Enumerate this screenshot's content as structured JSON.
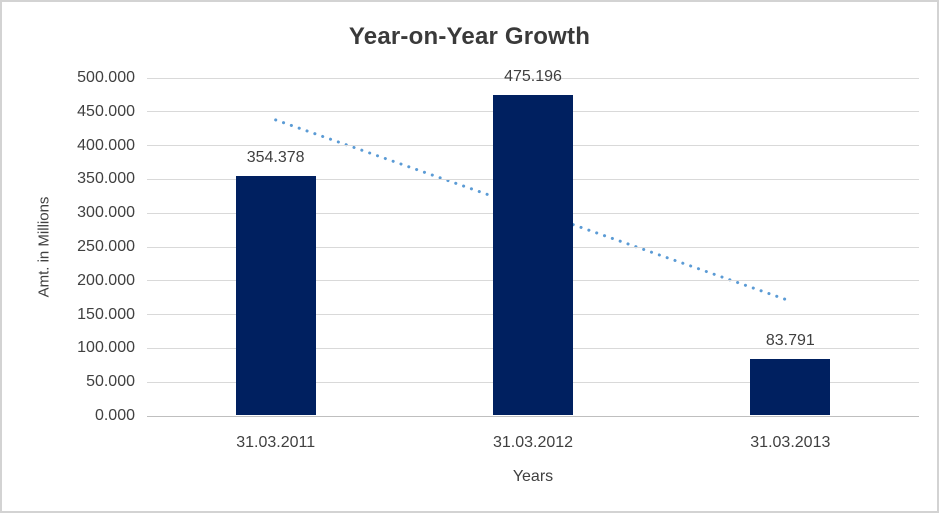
{
  "chart_data": {
    "type": "bar",
    "title": "Year-on-Year Growth",
    "xlabel": "Years",
    "ylabel": "Amt. in Millions",
    "categories": [
      "31.03.2011",
      "31.03.2012",
      "31.03.2013"
    ],
    "values": [
      354.378,
      475.196,
      83.791
    ],
    "value_labels": [
      "354.378",
      "475.196",
      "83.791"
    ],
    "ylim": [
      0,
      500
    ],
    "y_tick_labels": [
      "0.000",
      "50.000",
      "100.000",
      "150.000",
      "200.000",
      "250.000",
      "300.000",
      "350.000",
      "400.000",
      "450.000",
      "500.000"
    ],
    "grid": true,
    "legend": false,
    "colors": {
      "bar": "#002060",
      "gridline": "#d9d9d9",
      "axis_line": "#bfbfbf",
      "text": "#404040",
      "trendline": "#5b9bd5",
      "frame_border": "#d3d3d3"
    },
    "trendline": {
      "type": "linear",
      "style": "dotted",
      "start_category_index": 0,
      "end_category_index": 2,
      "start_value": 438,
      "end_value": 170
    }
  }
}
